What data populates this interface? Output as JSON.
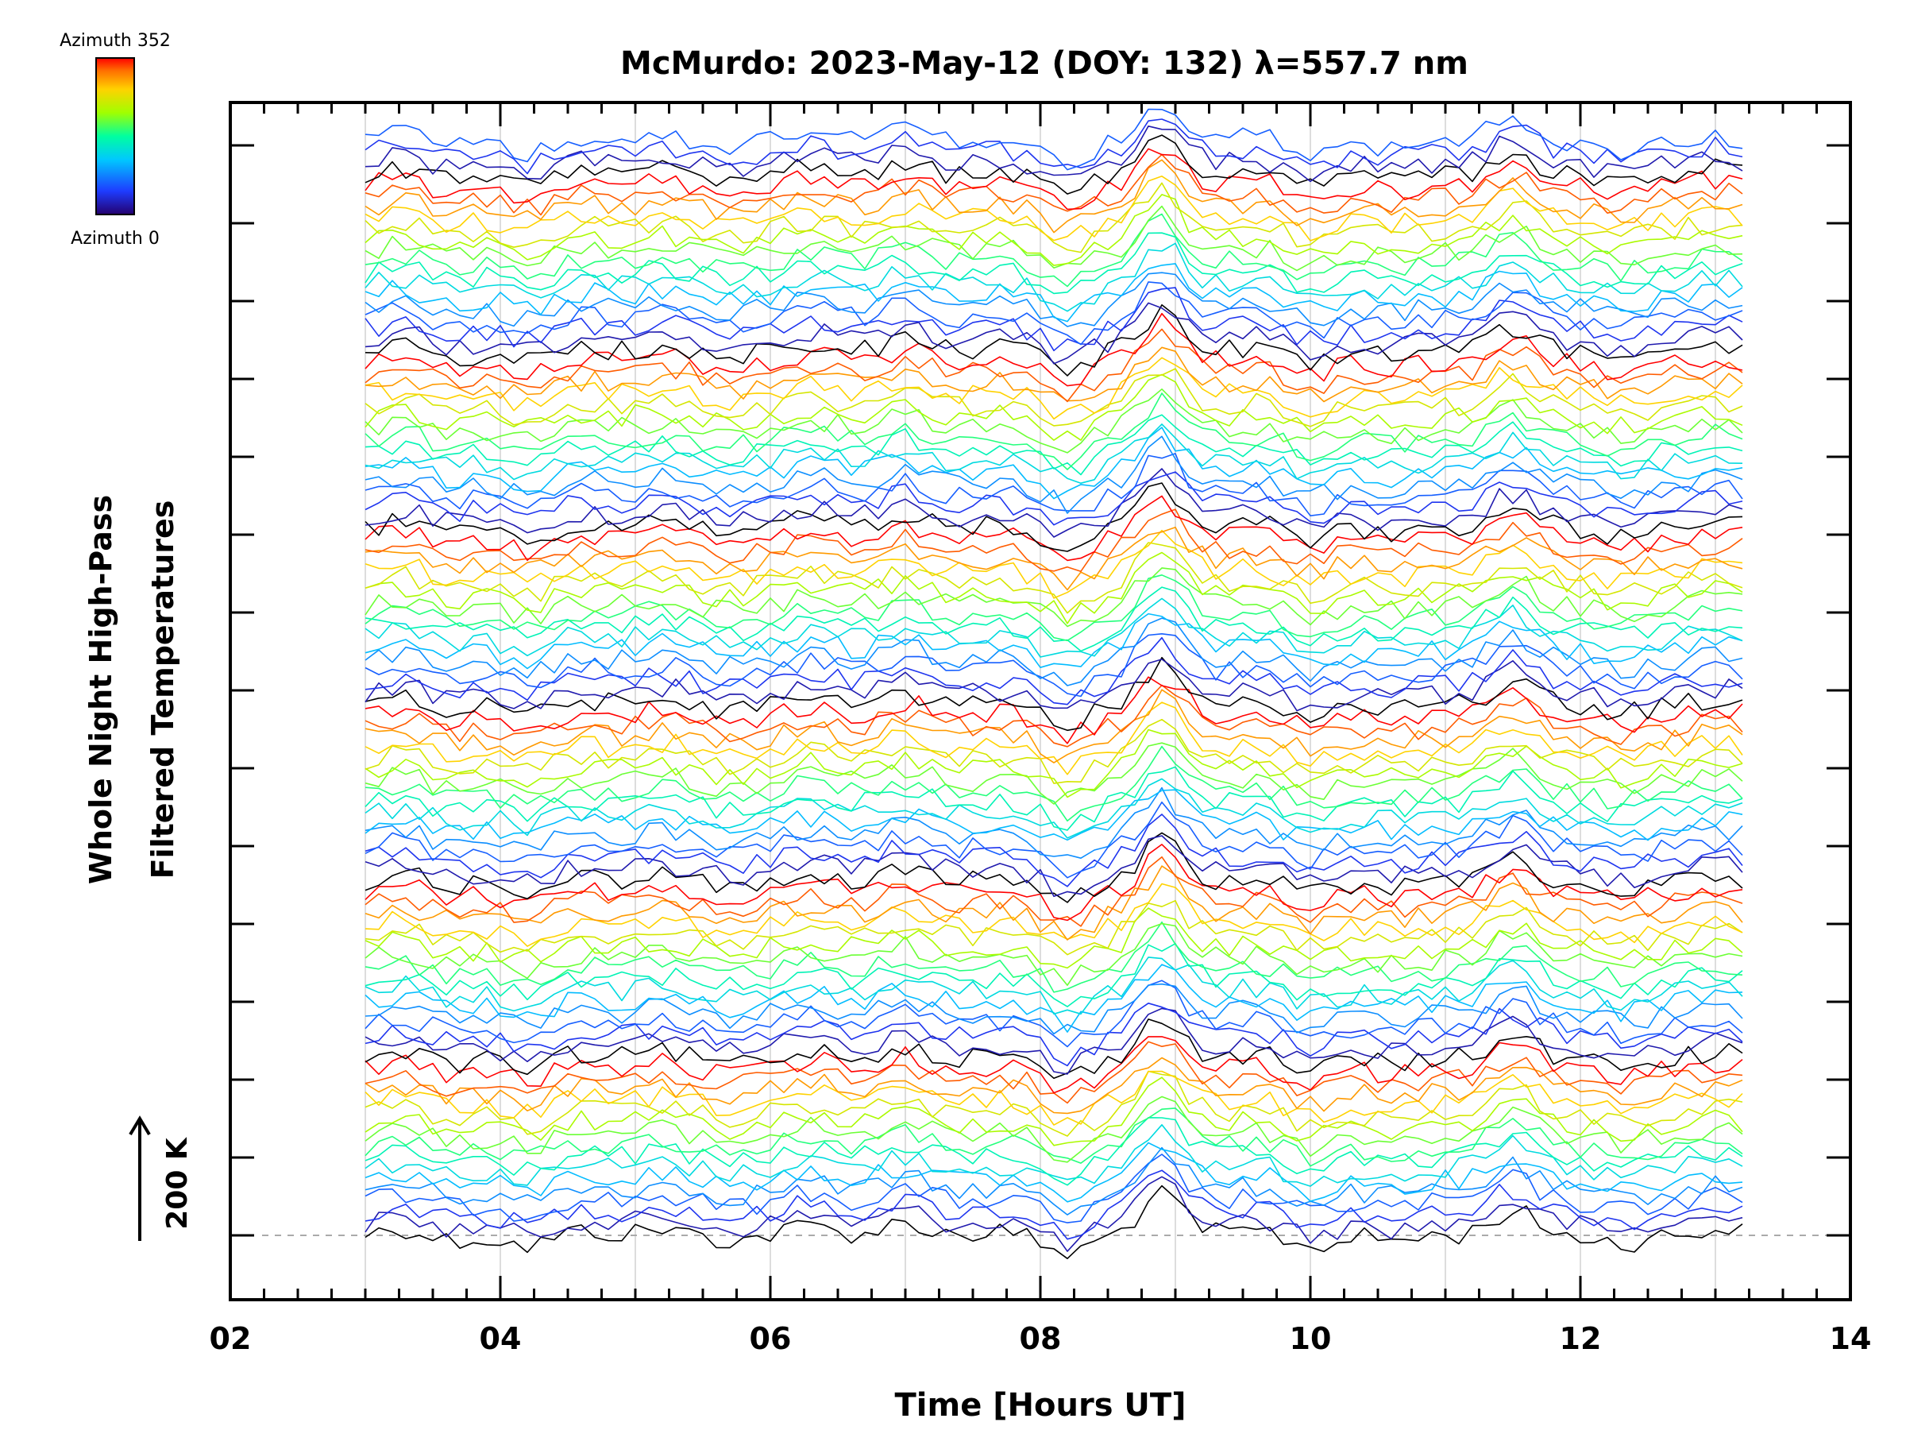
{
  "chart_data": {
    "type": "line",
    "title": "McMurdo: 2023-May-12 (DOY: 132) λ=557.7 nm",
    "xlabel": "Time [Hours UT]",
    "ylabel": [
      "Whole Night High-Pass",
      "Filtered Temperatures"
    ],
    "xlim": [
      2,
      14
    ],
    "xticks": [
      "02",
      "04",
      "06",
      "08",
      "10",
      "12",
      "14"
    ],
    "x_range_data": [
      3.0,
      13.2
    ],
    "n_series": 100,
    "series_color_by": "azimuth",
    "colorbar": {
      "top_label": "Azimuth 352",
      "bottom_label": "Azimuth 0",
      "colormap": "rainbow"
    },
    "scale_bar_label": "200 K",
    "grid": "vertical",
    "legend": "colorbar top-left"
  }
}
